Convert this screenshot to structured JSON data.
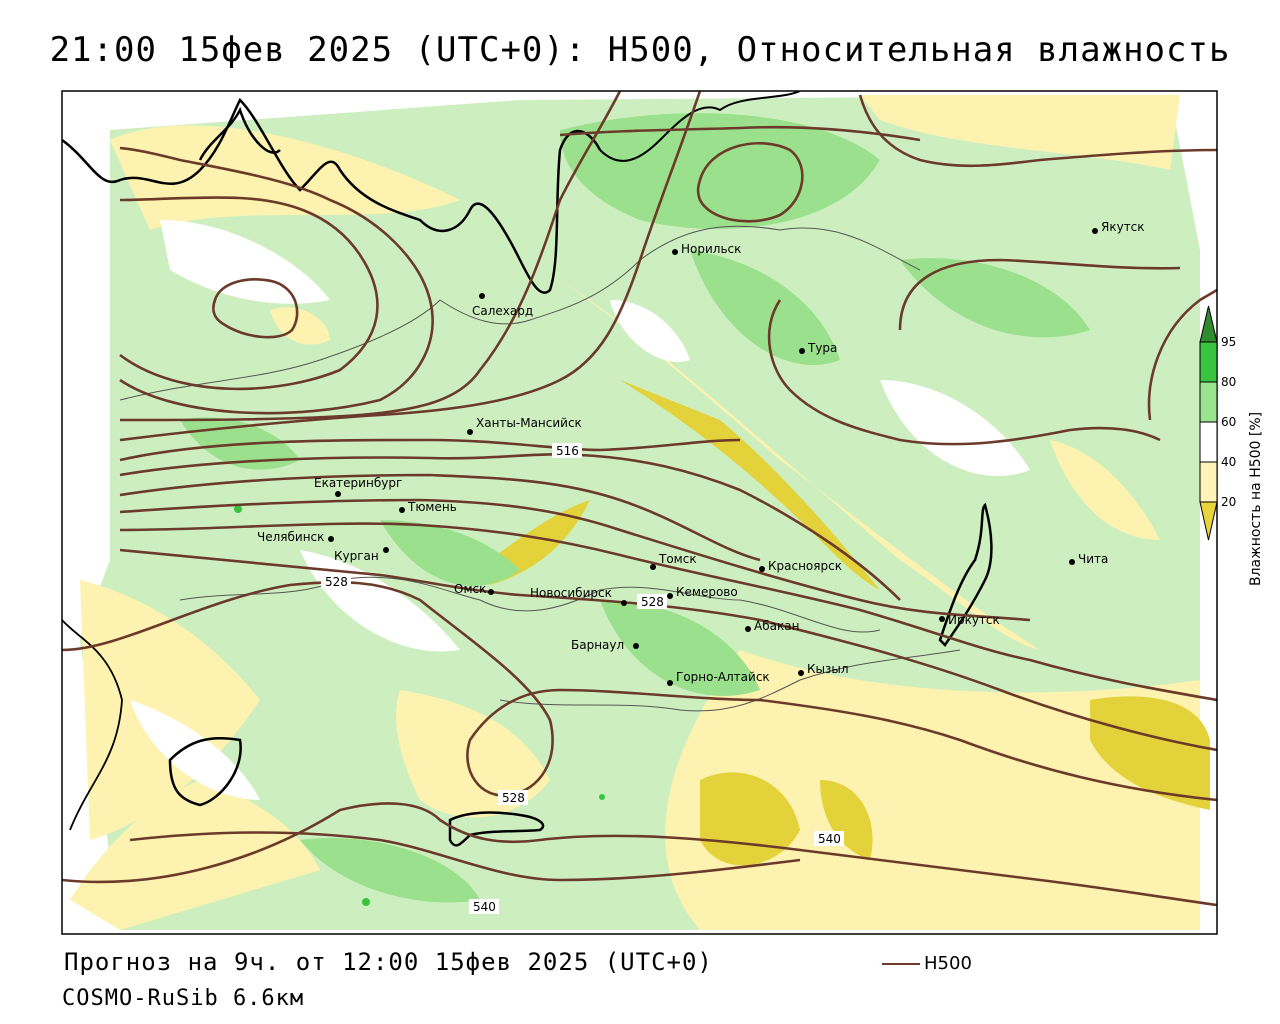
{
  "title": "21:00 15фев 2025 (UTC+0): H500, Относительная влажность",
  "footer": {
    "forecast": "Прогноз на 9ч. от 12:00 15фев 2025 (UTC+0)",
    "model": "COSMO-RuSib 6.6км"
  },
  "legend": {
    "h500_label": "H500"
  },
  "colorbar": {
    "title": "Влажность на H500 [%]",
    "ticks": [
      "20",
      "40",
      "60",
      "80",
      "95"
    ],
    "colors": {
      "gt95": "#2e8b2e",
      "80_95": "#39c43f",
      "60_80": "#99e58f",
      "40_60": "#ffffff",
      "20_40": "#fff4b8",
      "lt20": "#e8d53a"
    }
  },
  "colors": {
    "contour": "#6b3a2a",
    "humid_light": "#cdefc0",
    "humid_mid": "#9be08d",
    "dry_light": "#fdf2b0",
    "dry_dark": "#e3d23a"
  },
  "cities": [
    {
      "name": "Норильск"
    },
    {
      "name": "Салехард"
    },
    {
      "name": "Якутск"
    },
    {
      "name": "Тура"
    },
    {
      "name": "Ханты-Мансийск"
    },
    {
      "name": "Екатеринбург"
    },
    {
      "name": "Тюмень"
    },
    {
      "name": "Челябинск"
    },
    {
      "name": "Курган"
    },
    {
      "name": "Омск"
    },
    {
      "name": "Новосибирск"
    },
    {
      "name": "Томск"
    },
    {
      "name": "Кемерово"
    },
    {
      "name": "Красноярск"
    },
    {
      "name": "Барнаул"
    },
    {
      "name": "Абакан"
    },
    {
      "name": "Иркутск"
    },
    {
      "name": "Чита"
    },
    {
      "name": "Горно-Алтайск"
    },
    {
      "name": "Кызыл"
    }
  ],
  "contour_labels": [
    "516",
    "528",
    "528",
    "528",
    "540",
    "540"
  ]
}
